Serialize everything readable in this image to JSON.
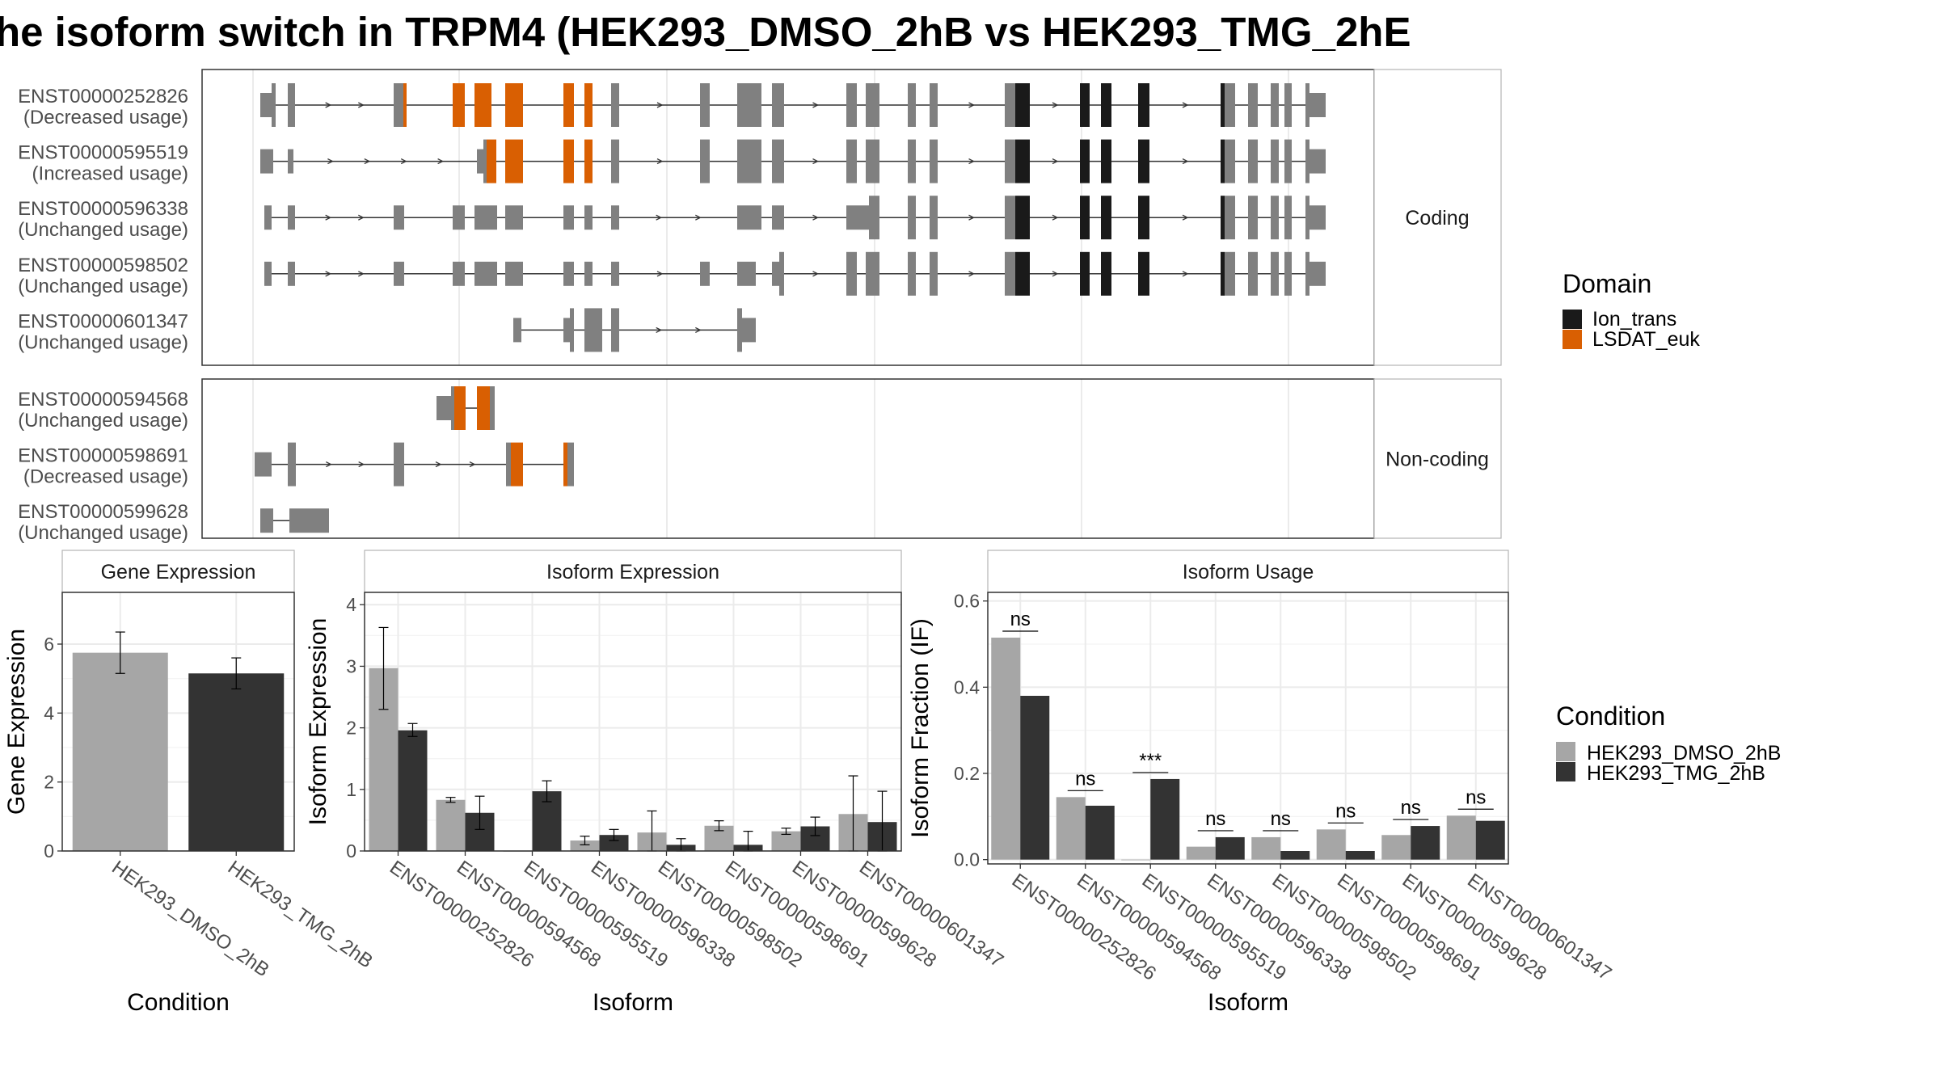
{
  "title": "he isoform switch in TRPM4 (HEK293_DMSO_2hB vs HEK293_TMG_2hE",
  "colors": {
    "dmso": "#a6a6a6",
    "tmg": "#333333",
    "exon": "#808080",
    "domain_ion_trans": "#1a1a1a",
    "domain_lsdat_euk": "#d95f02",
    "strip_bg": "#ffffff",
    "grid": "#ebebeb",
    "panel_border": "#333333"
  },
  "transcript_panel": {
    "coding_strip": "Coding",
    "noncoding_strip": "Non-coding",
    "coding_transcripts": [
      {
        "id": "ENST00000252826",
        "usage": "(Decreased usage)"
      },
      {
        "id": "ENST00000595519",
        "usage": "(Increased usage)"
      },
      {
        "id": "ENST00000596338",
        "usage": "(Unchanged usage)"
      },
      {
        "id": "ENST00000598502",
        "usage": "(Unchanged usage)"
      },
      {
        "id": "ENST00000601347",
        "usage": "(Unchanged usage)"
      }
    ],
    "noncoding_transcripts": [
      {
        "id": "ENST00000594568",
        "usage": "(Unchanged usage)"
      },
      {
        "id": "ENST00000598691",
        "usage": "(Decreased usage)"
      },
      {
        "id": "ENST00000599628",
        "usage": "(Unchanged usage)"
      }
    ]
  },
  "legends": {
    "domain": {
      "title": "Domain",
      "items": [
        "Ion_trans",
        "LSDAT_euk"
      ]
    },
    "condition": {
      "title": "Condition",
      "items": [
        "HEK293_DMSO_2hB",
        "HEK293_TMG_2hB"
      ]
    }
  },
  "chart_data": [
    {
      "type": "bar",
      "strip": "Gene Expression",
      "xlabel": "Condition",
      "ylabel": "Gene Expression",
      "categories": [
        "HEK293_DMSO_2hB",
        "HEK293_TMG_2hB"
      ],
      "values": [
        5.75,
        5.15
      ],
      "error": [
        [
          5.15,
          6.35
        ],
        [
          4.7,
          5.6
        ]
      ],
      "ylim": [
        0,
        7.5
      ],
      "yticks": [
        "0",
        "2",
        "4",
        "6"
      ]
    },
    {
      "type": "bar",
      "strip": "Isoform Expression",
      "xlabel": "Isoform",
      "ylabel": "Isoform Expression",
      "categories": [
        "ENST00000252826",
        "ENST00000594568",
        "ENST00000595519",
        "ENST00000596338",
        "ENST00000598502",
        "ENST00000598691",
        "ENST00000599628",
        "ENST00000601347"
      ],
      "series": [
        {
          "name": "HEK293_DMSO_2hB",
          "values": [
            2.97,
            0.83,
            0.0,
            0.17,
            0.3,
            0.41,
            0.32,
            0.6
          ],
          "error": [
            [
              2.3,
              3.63
            ],
            [
              0.79,
              0.87
            ],
            [
              0.0,
              0.0
            ],
            [
              0.1,
              0.24
            ],
            [
              0.0,
              0.65
            ],
            [
              0.33,
              0.49
            ],
            [
              0.27,
              0.37
            ],
            [
              0.0,
              1.22
            ]
          ]
        },
        {
          "name": "HEK293_TMG_2hB",
          "values": [
            1.96,
            0.62,
            0.97,
            0.26,
            0.1,
            0.1,
            0.4,
            0.47
          ],
          "error": [
            [
              1.86,
              2.07
            ],
            [
              0.35,
              0.89
            ],
            [
              0.8,
              1.14
            ],
            [
              0.17,
              0.35
            ],
            [
              0.0,
              0.2
            ],
            [
              0.0,
              0.32
            ],
            [
              0.25,
              0.55
            ],
            [
              0.0,
              0.97
            ]
          ]
        }
      ],
      "ylim": [
        0,
        4.2
      ],
      "yticks": [
        "0",
        "1",
        "2",
        "3",
        "4"
      ]
    },
    {
      "type": "bar",
      "strip": "Isoform Usage",
      "xlabel": "Isoform",
      "ylabel": "Isoform Fraction (IF)",
      "categories": [
        "ENST00000252826",
        "ENST00000594568",
        "ENST00000595519",
        "ENST00000596338",
        "ENST00000598502",
        "ENST00000598691",
        "ENST00000599628",
        "ENST00000601347"
      ],
      "series": [
        {
          "name": "HEK293_DMSO_2hB",
          "values": [
            0.515,
            0.145,
            0.0,
            0.03,
            0.052,
            0.07,
            0.057,
            0.102
          ]
        },
        {
          "name": "HEK293_TMG_2hB",
          "values": [
            0.38,
            0.125,
            0.187,
            0.052,
            0.02,
            0.02,
            0.078,
            0.09
          ]
        }
      ],
      "significance": [
        "ns",
        "ns",
        "***",
        "ns",
        "ns",
        "ns",
        "ns",
        "ns"
      ],
      "ylim": [
        -0.01,
        0.62
      ],
      "yticks": [
        "0.0",
        "0.2",
        "0.4",
        "0.6"
      ]
    }
  ]
}
